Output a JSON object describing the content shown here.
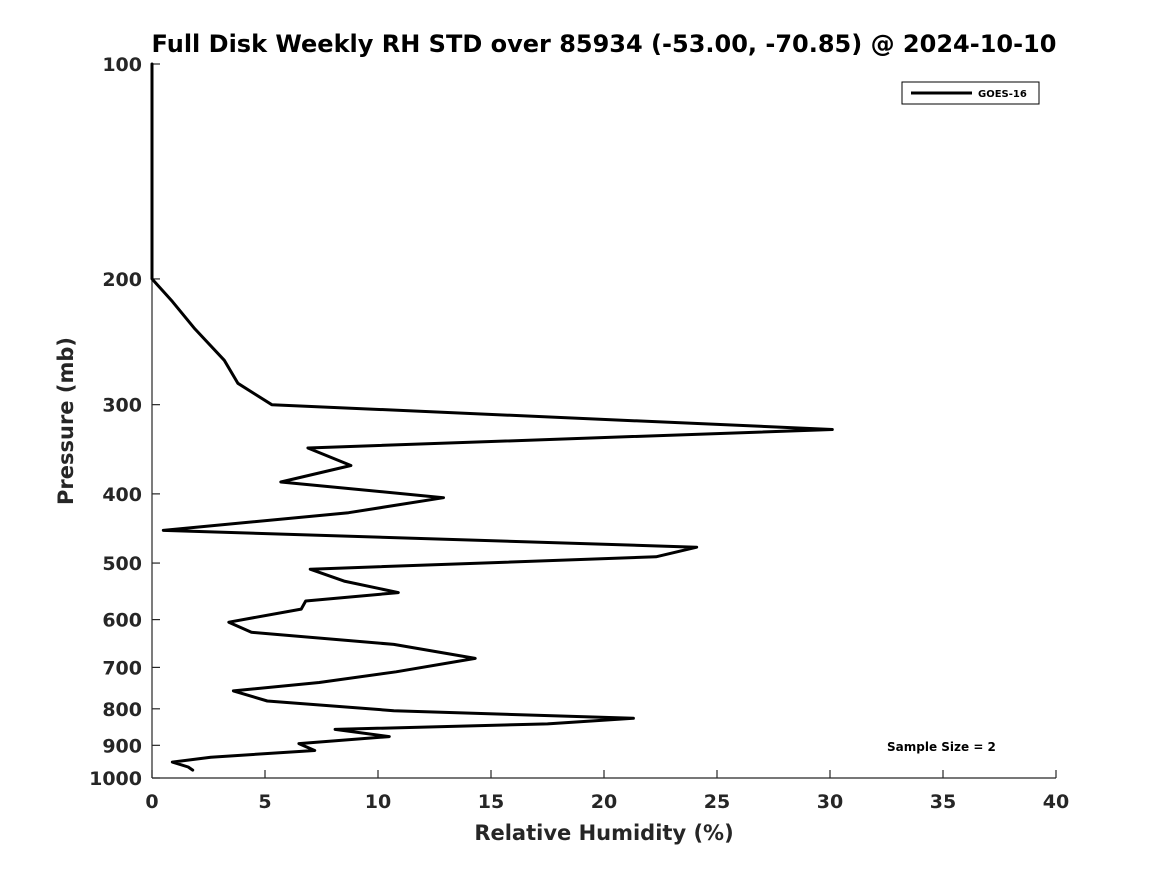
{
  "chart_data": {
    "type": "line",
    "title": "Full Disk Weekly RH STD over 85934 (-53.00, -70.85) @ 2024-10-10",
    "xlabel": "Relative Humidity (%)",
    "ylabel": "Pressure (mb)",
    "xlim": [
      0,
      40
    ],
    "ylim": [
      1000,
      100
    ],
    "y_scale": "log",
    "grid": false,
    "legend_position": "top-right",
    "x_ticks": [
      0,
      5,
      10,
      15,
      20,
      25,
      30,
      35,
      40
    ],
    "x_tick_labels": [
      "0",
      "5",
      "10",
      "15",
      "20",
      "25",
      "30",
      "35",
      "40"
    ],
    "y_ticks": [
      100,
      200,
      300,
      400,
      500,
      600,
      700,
      800,
      900,
      1000
    ],
    "y_tick_labels": [
      "100",
      "200",
      "300",
      "400",
      "500",
      "600",
      "700",
      "800",
      "900",
      "1000"
    ],
    "annotation": "Sample Size = 2",
    "series": [
      {
        "name": "GOES-16",
        "color": "#000000",
        "x": [
          0.0,
          0.0,
          0.0,
          0.0,
          0.0,
          0.9,
          1.9,
          3.2,
          3.8,
          5.3,
          30.1,
          6.9,
          8.8,
          5.7,
          12.9,
          8.7,
          0.5,
          24.1,
          22.3,
          7.0,
          8.5,
          10.9,
          6.8,
          6.6,
          3.4,
          4.4,
          10.7,
          14.3,
          10.8,
          7.4,
          3.6,
          5.1,
          10.7,
          21.3,
          17.5,
          8.1,
          10.5,
          6.5,
          7.2,
          2.6,
          0.9,
          1.6,
          1.8
        ],
        "y": [
          100,
          125,
          150,
          175,
          200,
          215,
          235,
          260,
          280,
          300,
          325,
          345,
          365,
          385,
          405,
          425,
          450,
          475,
          490,
          510,
          530,
          550,
          565,
          580,
          605,
          625,
          650,
          680,
          710,
          735,
          755,
          780,
          805,
          825,
          840,
          855,
          875,
          895,
          915,
          935,
          950,
          965,
          975
        ]
      }
    ]
  }
}
